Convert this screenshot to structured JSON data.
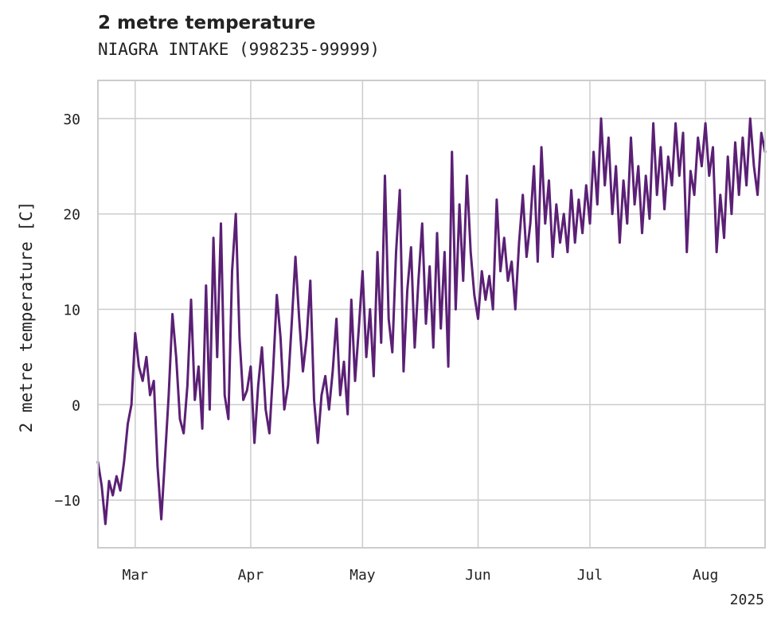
{
  "chart_data": {
    "type": "line",
    "title": "2 metre temperature",
    "subtitle": "NIAGRA INTAKE (998235-99999)",
    "xlabel": "",
    "ylabel": "2 metre temperature [C]",
    "x_range": [
      "2025-02-19",
      "2025-08-17"
    ],
    "ylim": [
      -15,
      34
    ],
    "x_ticks": [
      {
        "date": "2025-03-01",
        "label": "Mar"
      },
      {
        "date": "2025-04-01",
        "label": "Apr"
      },
      {
        "date": "2025-05-01",
        "label": "May"
      },
      {
        "date": "2025-06-01",
        "label": "Jun"
      },
      {
        "date": "2025-07-01",
        "label": "Jul"
      },
      {
        "date": "2025-08-01",
        "label": "Aug"
      }
    ],
    "x_year_label": "2025",
    "y_ticks": [
      -10,
      0,
      10,
      20,
      30
    ],
    "grid": true,
    "series": [
      {
        "color": "#5b2075",
        "points": [
          [
            "2025-02-19",
            -6.0
          ],
          [
            "2025-02-20",
            -8.5
          ],
          [
            "2025-02-21",
            -12.5
          ],
          [
            "2025-02-22",
            -8.0
          ],
          [
            "2025-02-23",
            -9.5
          ],
          [
            "2025-02-24",
            -7.5
          ],
          [
            "2025-02-25",
            -9.0
          ],
          [
            "2025-02-26",
            -6.0
          ],
          [
            "2025-02-27",
            -2.0
          ],
          [
            "2025-02-28",
            0.0
          ],
          [
            "2025-03-01",
            7.5
          ],
          [
            "2025-03-02",
            4.0
          ],
          [
            "2025-03-03",
            2.5
          ],
          [
            "2025-03-04",
            5.0
          ],
          [
            "2025-03-05",
            1.0
          ],
          [
            "2025-03-06",
            2.5
          ],
          [
            "2025-03-07",
            -6.5
          ],
          [
            "2025-03-08",
            -12.0
          ],
          [
            "2025-03-09",
            -5.5
          ],
          [
            "2025-03-10",
            1.0
          ],
          [
            "2025-03-11",
            9.5
          ],
          [
            "2025-03-12",
            5.0
          ],
          [
            "2025-03-13",
            -1.5
          ],
          [
            "2025-03-14",
            -3.0
          ],
          [
            "2025-03-15",
            2.0
          ],
          [
            "2025-03-16",
            11.0
          ],
          [
            "2025-03-17",
            0.5
          ],
          [
            "2025-03-18",
            4.0
          ],
          [
            "2025-03-19",
            -2.5
          ],
          [
            "2025-03-20",
            12.5
          ],
          [
            "2025-03-21",
            -0.5
          ],
          [
            "2025-03-22",
            17.5
          ],
          [
            "2025-03-23",
            5.0
          ],
          [
            "2025-03-24",
            19.0
          ],
          [
            "2025-03-25",
            1.0
          ],
          [
            "2025-03-26",
            -1.5
          ],
          [
            "2025-03-27",
            14.0
          ],
          [
            "2025-03-28",
            20.0
          ],
          [
            "2025-03-29",
            7.0
          ],
          [
            "2025-03-30",
            0.5
          ],
          [
            "2025-03-31",
            1.5
          ],
          [
            "2025-04-01",
            4.0
          ],
          [
            "2025-04-02",
            -4.0
          ],
          [
            "2025-04-03",
            2.0
          ],
          [
            "2025-04-04",
            6.0
          ],
          [
            "2025-04-05",
            -0.5
          ],
          [
            "2025-04-06",
            -3.0
          ],
          [
            "2025-04-07",
            3.5
          ],
          [
            "2025-04-08",
            11.5
          ],
          [
            "2025-04-09",
            7.0
          ],
          [
            "2025-04-10",
            -0.5
          ],
          [
            "2025-04-11",
            2.0
          ],
          [
            "2025-04-12",
            8.5
          ],
          [
            "2025-04-13",
            15.5
          ],
          [
            "2025-04-14",
            9.0
          ],
          [
            "2025-04-15",
            3.5
          ],
          [
            "2025-04-16",
            7.0
          ],
          [
            "2025-04-17",
            13.0
          ],
          [
            "2025-04-18",
            0.5
          ],
          [
            "2025-04-19",
            -4.0
          ],
          [
            "2025-04-20",
            1.0
          ],
          [
            "2025-04-21",
            3.0
          ],
          [
            "2025-04-22",
            -0.5
          ],
          [
            "2025-04-23",
            3.5
          ],
          [
            "2025-04-24",
            9.0
          ],
          [
            "2025-04-25",
            1.0
          ],
          [
            "2025-04-26",
            4.5
          ],
          [
            "2025-04-27",
            -1.0
          ],
          [
            "2025-04-28",
            11.0
          ],
          [
            "2025-04-29",
            2.5
          ],
          [
            "2025-04-30",
            8.0
          ],
          [
            "2025-05-01",
            14.0
          ],
          [
            "2025-05-02",
            5.0
          ],
          [
            "2025-05-03",
            10.0
          ],
          [
            "2025-05-04",
            3.0
          ],
          [
            "2025-05-05",
            16.0
          ],
          [
            "2025-05-06",
            6.5
          ],
          [
            "2025-05-07",
            24.0
          ],
          [
            "2025-05-08",
            9.0
          ],
          [
            "2025-05-09",
            5.5
          ],
          [
            "2025-05-10",
            16.0
          ],
          [
            "2025-05-11",
            22.5
          ],
          [
            "2025-05-12",
            3.5
          ],
          [
            "2025-05-13",
            12.0
          ],
          [
            "2025-05-14",
            16.5
          ],
          [
            "2025-05-15",
            6.0
          ],
          [
            "2025-05-16",
            13.0
          ],
          [
            "2025-05-17",
            19.0
          ],
          [
            "2025-05-18",
            8.5
          ],
          [
            "2025-05-19",
            14.5
          ],
          [
            "2025-05-20",
            6.0
          ],
          [
            "2025-05-21",
            18.0
          ],
          [
            "2025-05-22",
            8.0
          ],
          [
            "2025-05-23",
            16.0
          ],
          [
            "2025-05-24",
            4.0
          ],
          [
            "2025-05-25",
            26.5
          ],
          [
            "2025-05-26",
            10.0
          ],
          [
            "2025-05-27",
            21.0
          ],
          [
            "2025-05-28",
            13.0
          ],
          [
            "2025-05-29",
            24.0
          ],
          [
            "2025-05-30",
            16.0
          ],
          [
            "2025-05-31",
            11.5
          ],
          [
            "2025-06-01",
            9.0
          ],
          [
            "2025-06-02",
            14.0
          ],
          [
            "2025-06-03",
            11.0
          ],
          [
            "2025-06-04",
            13.5
          ],
          [
            "2025-06-05",
            10.0
          ],
          [
            "2025-06-06",
            21.5
          ],
          [
            "2025-06-07",
            14.0
          ],
          [
            "2025-06-08",
            17.5
          ],
          [
            "2025-06-09",
            13.0
          ],
          [
            "2025-06-10",
            15.0
          ],
          [
            "2025-06-11",
            10.0
          ],
          [
            "2025-06-12",
            17.0
          ],
          [
            "2025-06-13",
            22.0
          ],
          [
            "2025-06-14",
            15.5
          ],
          [
            "2025-06-15",
            19.0
          ],
          [
            "2025-06-16",
            25.0
          ],
          [
            "2025-06-17",
            15.0
          ],
          [
            "2025-06-18",
            27.0
          ],
          [
            "2025-06-19",
            19.0
          ],
          [
            "2025-06-20",
            23.5
          ],
          [
            "2025-06-21",
            15.5
          ],
          [
            "2025-06-22",
            21.0
          ],
          [
            "2025-06-23",
            17.0
          ],
          [
            "2025-06-24",
            20.0
          ],
          [
            "2025-06-25",
            16.0
          ],
          [
            "2025-06-26",
            22.5
          ],
          [
            "2025-06-27",
            17.0
          ],
          [
            "2025-06-28",
            21.5
          ],
          [
            "2025-06-29",
            18.0
          ],
          [
            "2025-06-30",
            23.0
          ],
          [
            "2025-07-01",
            19.0
          ],
          [
            "2025-07-02",
            26.5
          ],
          [
            "2025-07-03",
            21.0
          ],
          [
            "2025-07-04",
            30.0
          ],
          [
            "2025-07-05",
            23.0
          ],
          [
            "2025-07-06",
            28.0
          ],
          [
            "2025-07-07",
            20.0
          ],
          [
            "2025-07-08",
            25.0
          ],
          [
            "2025-07-09",
            17.0
          ],
          [
            "2025-07-10",
            23.5
          ],
          [
            "2025-07-11",
            19.0
          ],
          [
            "2025-07-12",
            28.0
          ],
          [
            "2025-07-13",
            21.0
          ],
          [
            "2025-07-14",
            25.0
          ],
          [
            "2025-07-15",
            18.0
          ],
          [
            "2025-07-16",
            24.0
          ],
          [
            "2025-07-17",
            19.5
          ],
          [
            "2025-07-18",
            29.5
          ],
          [
            "2025-07-19",
            22.0
          ],
          [
            "2025-07-20",
            27.0
          ],
          [
            "2025-07-21",
            20.5
          ],
          [
            "2025-07-22",
            26.0
          ],
          [
            "2025-07-23",
            23.0
          ],
          [
            "2025-07-24",
            29.5
          ],
          [
            "2025-07-25",
            24.0
          ],
          [
            "2025-07-26",
            28.5
          ],
          [
            "2025-07-27",
            16.0
          ],
          [
            "2025-07-28",
            24.5
          ],
          [
            "2025-07-29",
            22.0
          ],
          [
            "2025-07-30",
            28.0
          ],
          [
            "2025-07-31",
            25.0
          ],
          [
            "2025-08-01",
            29.5
          ],
          [
            "2025-08-02",
            24.0
          ],
          [
            "2025-08-03",
            27.0
          ],
          [
            "2025-08-04",
            16.0
          ],
          [
            "2025-08-05",
            22.0
          ],
          [
            "2025-08-06",
            17.5
          ],
          [
            "2025-08-07",
            26.0
          ],
          [
            "2025-08-08",
            20.0
          ],
          [
            "2025-08-09",
            27.5
          ],
          [
            "2025-08-10",
            22.0
          ],
          [
            "2025-08-11",
            28.0
          ],
          [
            "2025-08-12",
            23.0
          ],
          [
            "2025-08-13",
            30.0
          ],
          [
            "2025-08-14",
            25.0
          ],
          [
            "2025-08-15",
            22.0
          ],
          [
            "2025-08-16",
            28.5
          ],
          [
            "2025-08-17",
            26.5
          ]
        ]
      }
    ]
  }
}
